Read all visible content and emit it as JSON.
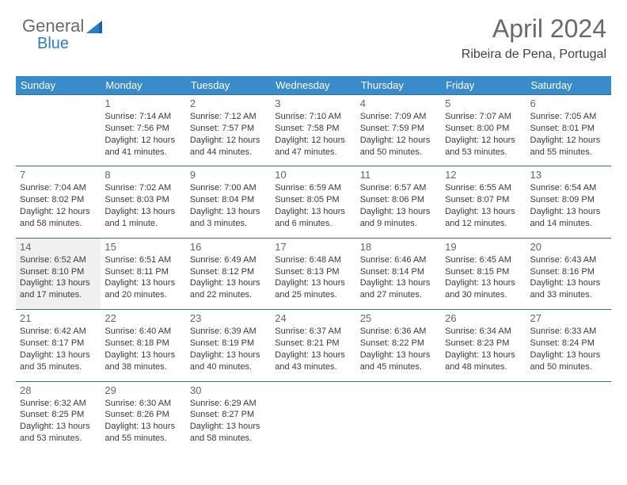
{
  "logo": {
    "part1": "General",
    "part2": "Blue"
  },
  "title": "April 2024",
  "location": "Ribeira de Pena, Portugal",
  "colors": {
    "header_bg": "#3a8bc9",
    "header_text": "#ffffff",
    "row_border": "#3a6d95",
    "shade_bg": "#f0f0f0",
    "logo_gray": "#6a6a6a",
    "logo_blue": "#2b7fbf",
    "title_color": "#6a6a6a",
    "text_color": "#3a3a3a"
  },
  "daynames": [
    "Sunday",
    "Monday",
    "Tuesday",
    "Wednesday",
    "Thursday",
    "Friday",
    "Saturday"
  ],
  "weeks": [
    [
      null,
      {
        "n": "1",
        "sr": "Sunrise: 7:14 AM",
        "ss": "Sunset: 7:56 PM",
        "d1": "Daylight: 12 hours",
        "d2": "and 41 minutes."
      },
      {
        "n": "2",
        "sr": "Sunrise: 7:12 AM",
        "ss": "Sunset: 7:57 PM",
        "d1": "Daylight: 12 hours",
        "d2": "and 44 minutes."
      },
      {
        "n": "3",
        "sr": "Sunrise: 7:10 AM",
        "ss": "Sunset: 7:58 PM",
        "d1": "Daylight: 12 hours",
        "d2": "and 47 minutes."
      },
      {
        "n": "4",
        "sr": "Sunrise: 7:09 AM",
        "ss": "Sunset: 7:59 PM",
        "d1": "Daylight: 12 hours",
        "d2": "and 50 minutes."
      },
      {
        "n": "5",
        "sr": "Sunrise: 7:07 AM",
        "ss": "Sunset: 8:00 PM",
        "d1": "Daylight: 12 hours",
        "d2": "and 53 minutes."
      },
      {
        "n": "6",
        "sr": "Sunrise: 7:05 AM",
        "ss": "Sunset: 8:01 PM",
        "d1": "Daylight: 12 hours",
        "d2": "and 55 minutes."
      }
    ],
    [
      {
        "n": "7",
        "sr": "Sunrise: 7:04 AM",
        "ss": "Sunset: 8:02 PM",
        "d1": "Daylight: 12 hours",
        "d2": "and 58 minutes."
      },
      {
        "n": "8",
        "sr": "Sunrise: 7:02 AM",
        "ss": "Sunset: 8:03 PM",
        "d1": "Daylight: 13 hours",
        "d2": "and 1 minute."
      },
      {
        "n": "9",
        "sr": "Sunrise: 7:00 AM",
        "ss": "Sunset: 8:04 PM",
        "d1": "Daylight: 13 hours",
        "d2": "and 3 minutes."
      },
      {
        "n": "10",
        "sr": "Sunrise: 6:59 AM",
        "ss": "Sunset: 8:05 PM",
        "d1": "Daylight: 13 hours",
        "d2": "and 6 minutes."
      },
      {
        "n": "11",
        "sr": "Sunrise: 6:57 AM",
        "ss": "Sunset: 8:06 PM",
        "d1": "Daylight: 13 hours",
        "d2": "and 9 minutes."
      },
      {
        "n": "12",
        "sr": "Sunrise: 6:55 AM",
        "ss": "Sunset: 8:07 PM",
        "d1": "Daylight: 13 hours",
        "d2": "and 12 minutes."
      },
      {
        "n": "13",
        "sr": "Sunrise: 6:54 AM",
        "ss": "Sunset: 8:09 PM",
        "d1": "Daylight: 13 hours",
        "d2": "and 14 minutes."
      }
    ],
    [
      {
        "n": "14",
        "sr": "Sunrise: 6:52 AM",
        "ss": "Sunset: 8:10 PM",
        "d1": "Daylight: 13 hours",
        "d2": "and 17 minutes.",
        "shade": true
      },
      {
        "n": "15",
        "sr": "Sunrise: 6:51 AM",
        "ss": "Sunset: 8:11 PM",
        "d1": "Daylight: 13 hours",
        "d2": "and 20 minutes."
      },
      {
        "n": "16",
        "sr": "Sunrise: 6:49 AM",
        "ss": "Sunset: 8:12 PM",
        "d1": "Daylight: 13 hours",
        "d2": "and 22 minutes."
      },
      {
        "n": "17",
        "sr": "Sunrise: 6:48 AM",
        "ss": "Sunset: 8:13 PM",
        "d1": "Daylight: 13 hours",
        "d2": "and 25 minutes."
      },
      {
        "n": "18",
        "sr": "Sunrise: 6:46 AM",
        "ss": "Sunset: 8:14 PM",
        "d1": "Daylight: 13 hours",
        "d2": "and 27 minutes."
      },
      {
        "n": "19",
        "sr": "Sunrise: 6:45 AM",
        "ss": "Sunset: 8:15 PM",
        "d1": "Daylight: 13 hours",
        "d2": "and 30 minutes."
      },
      {
        "n": "20",
        "sr": "Sunrise: 6:43 AM",
        "ss": "Sunset: 8:16 PM",
        "d1": "Daylight: 13 hours",
        "d2": "and 33 minutes."
      }
    ],
    [
      {
        "n": "21",
        "sr": "Sunrise: 6:42 AM",
        "ss": "Sunset: 8:17 PM",
        "d1": "Daylight: 13 hours",
        "d2": "and 35 minutes."
      },
      {
        "n": "22",
        "sr": "Sunrise: 6:40 AM",
        "ss": "Sunset: 8:18 PM",
        "d1": "Daylight: 13 hours",
        "d2": "and 38 minutes."
      },
      {
        "n": "23",
        "sr": "Sunrise: 6:39 AM",
        "ss": "Sunset: 8:19 PM",
        "d1": "Daylight: 13 hours",
        "d2": "and 40 minutes."
      },
      {
        "n": "24",
        "sr": "Sunrise: 6:37 AM",
        "ss": "Sunset: 8:21 PM",
        "d1": "Daylight: 13 hours",
        "d2": "and 43 minutes."
      },
      {
        "n": "25",
        "sr": "Sunrise: 6:36 AM",
        "ss": "Sunset: 8:22 PM",
        "d1": "Daylight: 13 hours",
        "d2": "and 45 minutes."
      },
      {
        "n": "26",
        "sr": "Sunrise: 6:34 AM",
        "ss": "Sunset: 8:23 PM",
        "d1": "Daylight: 13 hours",
        "d2": "and 48 minutes."
      },
      {
        "n": "27",
        "sr": "Sunrise: 6:33 AM",
        "ss": "Sunset: 8:24 PM",
        "d1": "Daylight: 13 hours",
        "d2": "and 50 minutes."
      }
    ],
    [
      {
        "n": "28",
        "sr": "Sunrise: 6:32 AM",
        "ss": "Sunset: 8:25 PM",
        "d1": "Daylight: 13 hours",
        "d2": "and 53 minutes."
      },
      {
        "n": "29",
        "sr": "Sunrise: 6:30 AM",
        "ss": "Sunset: 8:26 PM",
        "d1": "Daylight: 13 hours",
        "d2": "and 55 minutes."
      },
      {
        "n": "30",
        "sr": "Sunrise: 6:29 AM",
        "ss": "Sunset: 8:27 PM",
        "d1": "Daylight: 13 hours",
        "d2": "and 58 minutes."
      },
      null,
      null,
      null,
      null
    ]
  ]
}
